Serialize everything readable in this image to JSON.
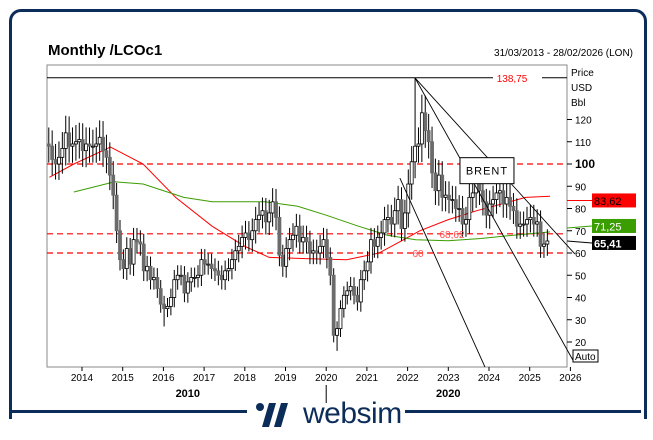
{
  "brand": {
    "name": "websim"
  },
  "chart_data": {
    "type": "candlestick",
    "title": "Monthly /LCOc1",
    "date_range": "31/03/2013 - 28/02/2026 (LON)",
    "unit_labels": [
      "Price",
      "USD",
      "Bbl"
    ],
    "start": {
      "year": 2013,
      "month": 3
    },
    "closes": [
      108,
      102,
      100,
      103,
      107,
      114,
      108,
      109,
      110,
      111,
      106,
      109,
      108,
      108,
      109,
      112,
      106,
      103,
      95,
      86,
      70,
      57,
      53,
      62,
      55,
      66,
      65,
      64,
      52,
      54,
      48,
      49,
      44,
      37,
      35,
      36,
      40,
      48,
      50,
      50,
      42,
      47,
      49,
      49,
      50,
      57,
      55,
      55,
      53,
      52,
      50,
      48,
      52,
      53,
      57,
      61,
      63,
      67,
      69,
      66,
      70,
      75,
      77,
      79,
      74,
      78,
      83,
      76,
      59,
      54,
      62,
      66,
      68,
      72,
      65,
      67,
      65,
      60,
      61,
      60,
      63,
      66,
      58,
      50,
      23,
      26,
      35,
      41,
      43,
      45,
      41,
      38,
      48,
      52,
      56,
      66,
      63,
      67,
      69,
      75,
      76,
      73,
      79,
      84,
      71,
      78,
      91,
      101,
      108,
      109,
      123,
      115,
      110,
      96,
      88,
      95,
      85,
      86,
      84,
      84,
      80,
      80,
      73,
      75,
      85,
      87,
      95,
      88,
      83,
      77,
      82,
      84,
      87,
      88,
      82,
      85,
      81,
      79,
      72,
      73,
      73,
      75,
      76,
      73,
      74,
      63,
      64,
      65.41
    ],
    "extremes": [
      {
        "index": 108,
        "high": 138.75
      },
      {
        "index": 85,
        "low": 16
      },
      {
        "index": 34,
        "low": 27
      }
    ],
    "ma_red": {
      "label": "83,62",
      "value": 83.62,
      "points": [
        [
          2013.2,
          94
        ],
        [
          2013.8,
          100
        ],
        [
          2014.7,
          107.6
        ],
        [
          2015.5,
          100
        ],
        [
          2016.3,
          85
        ],
        [
          2017.2,
          72
        ],
        [
          2018.0,
          63
        ],
        [
          2018.6,
          58
        ],
        [
          2019.5,
          57.5
        ],
        [
          2020.5,
          57
        ],
        [
          2021.3,
          60
        ],
        [
          2021.8,
          65
        ],
        [
          2022.3,
          70
        ],
        [
          2023.0,
          75
        ],
        [
          2023.7,
          79
        ],
        [
          2024.3,
          82
        ],
        [
          2024.9,
          85
        ],
        [
          2025.5,
          85.5
        ]
      ]
    },
    "ma_green": {
      "label": "71,25",
      "value": 71.25,
      "points": [
        [
          2013.8,
          87.4
        ],
        [
          2014.8,
          92
        ],
        [
          2015.5,
          91
        ],
        [
          2016.5,
          85
        ],
        [
          2017.2,
          83
        ],
        [
          2018.5,
          83
        ],
        [
          2019.3,
          81
        ],
        [
          2020.0,
          77
        ],
        [
          2020.8,
          72
        ],
        [
          2021.5,
          68
        ],
        [
          2022.2,
          66
        ],
        [
          2023.0,
          65.5
        ],
        [
          2023.8,
          66.5
        ],
        [
          2024.6,
          68
        ],
        [
          2025.5,
          69.5
        ]
      ]
    },
    "last_price": {
      "label": "65,41",
      "value": 65.41
    },
    "hlines": [
      {
        "value": 138.75,
        "label": "138,75",
        "style": "solid"
      },
      {
        "value": 100,
        "label": "",
        "style": "dashed"
      },
      {
        "value": 68.62,
        "label": "68,62",
        "style": "dashed"
      },
      {
        "value": 60,
        "label": "60",
        "style": "dashed"
      }
    ],
    "trendlines": [
      [
        [
          2022.18,
          138.75
        ],
        [
          2026.06,
          11.9
        ]
      ],
      [
        [
          2021.81,
          93.7
        ],
        [
          2023.9,
          8.8
        ]
      ],
      [
        [
          2022.18,
          138.75
        ],
        [
          2026.11,
          59.6
        ]
      ]
    ],
    "annotation": {
      "text": "BRENT",
      "x": 2023.95,
      "y": 97
    },
    "y_ticks": [
      20,
      30,
      40,
      50,
      60,
      70,
      80,
      90,
      100,
      110,
      120
    ],
    "y_bold": 100,
    "ylim": [
      9,
      149
    ],
    "x_ticks": [
      2014,
      2015,
      2016,
      2017,
      2018,
      2019,
      2020,
      2021,
      2022,
      2023,
      2024,
      2025,
      2026
    ],
    "x_decades": [
      {
        "label": "2010",
        "x": 2016.6
      },
      {
        "label": "2020",
        "x": 2023.0
      }
    ],
    "decade_split": 2020,
    "scale_mode": "Auto",
    "colors": {
      "red": "#ff0000",
      "green": "#3a9d00",
      "down": "#6b6b6b",
      "up": "#ffffff",
      "frame": "#0c2d5a"
    }
  }
}
